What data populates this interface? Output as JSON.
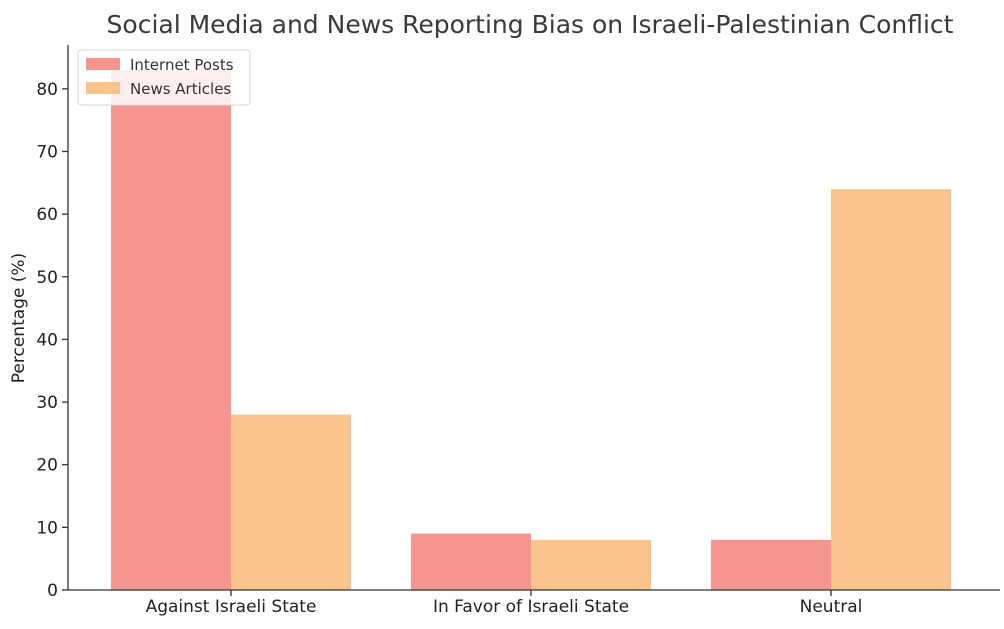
{
  "chart_data": {
    "type": "bar",
    "title": "Social Media and News Reporting Bias on Israeli-Palestinian Conflict",
    "xlabel": "",
    "ylabel": "Percentage (%)",
    "categories": [
      "Against Israeli State",
      "In Favor of Israeli State",
      "Neutral"
    ],
    "series": [
      {
        "name": "Internet Posts",
        "values": [
          83,
          9,
          8
        ],
        "color": "#f4968f"
      },
      {
        "name": "News Articles",
        "values": [
          28,
          8,
          64
        ],
        "color": "#f8c48c"
      }
    ],
    "ylim": [
      0,
      87
    ],
    "yticks": [
      0,
      10,
      20,
      30,
      40,
      50,
      60,
      70,
      80
    ],
    "grid": false,
    "legend_position": "top-left"
  }
}
